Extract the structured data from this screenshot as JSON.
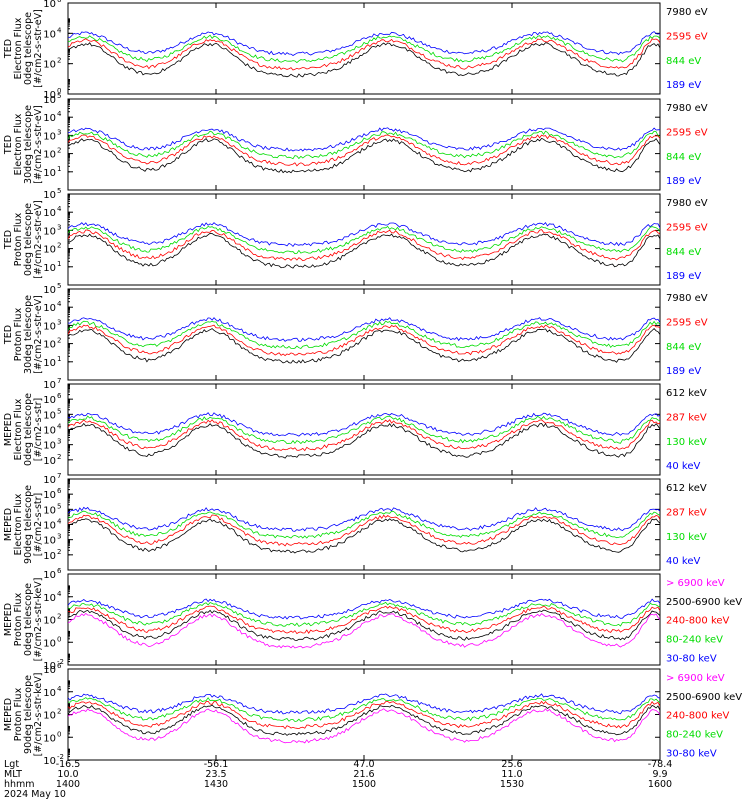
{
  "chart_data": [
    {
      "type": "line",
      "ylabel": [
        "TED",
        "Electron Flux",
        "0deg telescope",
        "[#/cm2-s-str-eV]"
      ],
      "ylim_log": [
        0,
        6
      ],
      "yticks": [
        {
          "label": "10",
          "exp": "0"
        },
        {
          "label": "10",
          "exp": "2"
        },
        {
          "label": "10",
          "exp": "4"
        },
        {
          "label": "10",
          "exp": "6"
        }
      ],
      "series": [
        {
          "name": "7980 eV",
          "color": "#000000"
        },
        {
          "name": "2595 eV",
          "color": "#ff0000"
        },
        {
          "name": "844 eV",
          "color": "#00dd00"
        },
        {
          "name": "189 eV",
          "color": "#0000ff"
        }
      ]
    },
    {
      "type": "line",
      "ylabel": [
        "TED",
        "Electron Flux",
        "30deg telescope",
        "[#/cm2-s-str-eV]"
      ],
      "ylim_log": [
        0,
        5
      ],
      "yticks": [
        {
          "label": "10",
          "exp": "1"
        },
        {
          "label": "10",
          "exp": "2"
        },
        {
          "label": "10",
          "exp": "3"
        },
        {
          "label": "10",
          "exp": "4"
        },
        {
          "label": "10",
          "exp": "5"
        }
      ],
      "series": [
        {
          "name": "7980 eV",
          "color": "#000000"
        },
        {
          "name": "2595 eV",
          "color": "#ff0000"
        },
        {
          "name": "844 eV",
          "color": "#00dd00"
        },
        {
          "name": "189 eV",
          "color": "#0000ff"
        }
      ]
    },
    {
      "type": "line",
      "ylabel": [
        "TED",
        "Proton Flux",
        "0deg telescope",
        "[#/cm2-s-str-eV]"
      ],
      "ylim_log": [
        0,
        5
      ],
      "yticks": [
        {
          "label": "10",
          "exp": "1"
        },
        {
          "label": "10",
          "exp": "2"
        },
        {
          "label": "10",
          "exp": "3"
        },
        {
          "label": "10",
          "exp": "4"
        },
        {
          "label": "10",
          "exp": "5"
        }
      ],
      "series": [
        {
          "name": "7980 eV",
          "color": "#000000"
        },
        {
          "name": "2595 eV",
          "color": "#ff0000"
        },
        {
          "name": "844 eV",
          "color": "#00dd00"
        },
        {
          "name": "189 eV",
          "color": "#0000ff"
        }
      ]
    },
    {
      "type": "line",
      "ylabel": [
        "TED",
        "Proton Flux",
        "30deg telescope",
        "[#/cm2-s-str-eV]"
      ],
      "ylim_log": [
        0,
        5
      ],
      "yticks": [
        {
          "label": "10",
          "exp": "1"
        },
        {
          "label": "10",
          "exp": "2"
        },
        {
          "label": "10",
          "exp": "3"
        },
        {
          "label": "10",
          "exp": "4"
        },
        {
          "label": "10",
          "exp": "5"
        }
      ],
      "series": [
        {
          "name": "7980 eV",
          "color": "#000000"
        },
        {
          "name": "2595 eV",
          "color": "#ff0000"
        },
        {
          "name": "844 eV",
          "color": "#00dd00"
        },
        {
          "name": "189 eV",
          "color": "#0000ff"
        }
      ]
    },
    {
      "type": "line",
      "ylabel": [
        "MEPED",
        "Electron Flux",
        "0deg telescope",
        "[#/cm2-s-str]"
      ],
      "ylim_log": [
        1,
        7
      ],
      "yticks": [
        {
          "label": "10",
          "exp": "2"
        },
        {
          "label": "10",
          "exp": "3"
        },
        {
          "label": "10",
          "exp": "4"
        },
        {
          "label": "10",
          "exp": "5"
        },
        {
          "label": "10",
          "exp": "6"
        },
        {
          "label": "10",
          "exp": "7"
        }
      ],
      "series": [
        {
          "name": "612 keV",
          "color": "#000000"
        },
        {
          "name": "287 keV",
          "color": "#ff0000"
        },
        {
          "name": "130 keV",
          "color": "#00dd00"
        },
        {
          "name": "40 keV",
          "color": "#0000ff"
        }
      ]
    },
    {
      "type": "line",
      "ylabel": [
        "MEPED",
        "Electron Flux",
        "90deg telescope",
        "[#/cm2-s-str]"
      ],
      "ylim_log": [
        1,
        7
      ],
      "yticks": [
        {
          "label": "10",
          "exp": "2"
        },
        {
          "label": "10",
          "exp": "3"
        },
        {
          "label": "10",
          "exp": "4"
        },
        {
          "label": "10",
          "exp": "5"
        },
        {
          "label": "10",
          "exp": "6"
        },
        {
          "label": "10",
          "exp": "7"
        }
      ],
      "series": [
        {
          "name": "612 keV",
          "color": "#000000"
        },
        {
          "name": "287 keV",
          "color": "#ff0000"
        },
        {
          "name": "130 keV",
          "color": "#00dd00"
        },
        {
          "name": "40 keV",
          "color": "#0000ff"
        }
      ]
    },
    {
      "type": "line",
      "ylabel": [
        "MEPED",
        "Proton Flux",
        "0deg telescope",
        "[#/cm2-s-str-keV]"
      ],
      "ylim_log": [
        -2,
        6
      ],
      "yticks": [
        {
          "label": "10",
          "exp": "-2"
        },
        {
          "label": "10",
          "exp": "0"
        },
        {
          "label": "10",
          "exp": "2"
        },
        {
          "label": "10",
          "exp": "4"
        },
        {
          "label": "10",
          "exp": "6"
        }
      ],
      "series": [
        {
          "name": "> 6900 keV",
          "color": "#ff00ff"
        },
        {
          "name": "2500-6900 keV",
          "color": "#000000"
        },
        {
          "name": "240-800 keV",
          "color": "#ff0000"
        },
        {
          "name": "80-240 keV",
          "color": "#00dd00"
        },
        {
          "name": "30-80 keV",
          "color": "#0000ff"
        }
      ]
    },
    {
      "type": "line",
      "ylabel": [
        "MEPED",
        "Proton Flux",
        "90deg telescope",
        "[#/cm2-s-str-keV]"
      ],
      "ylim_log": [
        -2,
        6
      ],
      "yticks": [
        {
          "label": "10",
          "exp": "-2"
        },
        {
          "label": "10",
          "exp": "0"
        },
        {
          "label": "10",
          "exp": "2"
        },
        {
          "label": "10",
          "exp": "4"
        },
        {
          "label": "10",
          "exp": "6"
        }
      ],
      "series": [
        {
          "name": "> 6900 keV",
          "color": "#ff00ff"
        },
        {
          "name": "2500-6900 keV",
          "color": "#000000"
        },
        {
          "name": "240-800 keV",
          "color": "#ff0000"
        },
        {
          "name": "80-240 keV",
          "color": "#00dd00"
        },
        {
          "name": "30-80 keV",
          "color": "#0000ff"
        }
      ]
    }
  ],
  "x_axis": {
    "row_labels": [
      "Lgt",
      "MLT",
      "hhmm",
      "2024 May 10"
    ],
    "ticks": [
      {
        "hhmm": 1400,
        "lgt": "-16.5",
        "mlt": "10.0",
        "hhmm_label": "1400"
      },
      {
        "hhmm": 1430,
        "lgt": "-56.1",
        "mlt": "23.5",
        "hhmm_label": "1430"
      },
      {
        "hhmm": 1500,
        "lgt": "47.0",
        "mlt": "21.6",
        "hhmm_label": "1500"
      },
      {
        "hhmm": 1530,
        "lgt": "25.6",
        "mlt": "11.0",
        "hhmm_label": "1530"
      },
      {
        "hhmm": 1600,
        "lgt": "-78.4",
        "mlt": "9.9",
        "hhmm_label": "1600"
      }
    ]
  }
}
